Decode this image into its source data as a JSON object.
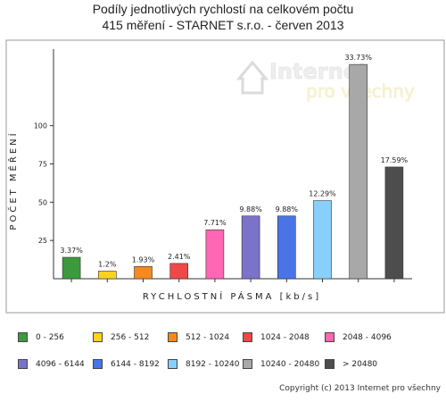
{
  "title_line1": "Podíly jednotlivých rychlostí na celkovém počtu",
  "title_line2": "415 měření - STARNET s.r.o. - červen 2013",
  "watermark": {
    "line1": "Internet",
    "line2": "pro všechny"
  },
  "copyright": "Copyright (c) 2013 Internet pro všechny",
  "chart_data": {
    "type": "bar",
    "title": "Podíly jednotlivých rychlostí na celkovém počtu",
    "subtitle": "415 měření - STARNET s.r.o. - červen 2013",
    "xlabel": "RYCHLOSTNÍ PÁSMA [kb/s]",
    "ylabel": "POČET MĚŘENÍ",
    "ylim": [
      0,
      150
    ],
    "yticks": [
      25,
      50,
      75,
      100
    ],
    "grid": false,
    "legend_position": "bottom",
    "categories": [
      "0 - 256",
      "256 - 512",
      "512 - 1024",
      "1024 - 2048",
      "2048 - 4096",
      "4096 - 6144",
      "6144 - 8192",
      "8192 - 10240",
      "10240 - 20480",
      "> 20480"
    ],
    "values": [
      14,
      5,
      8,
      10,
      32,
      41,
      41,
      51,
      140,
      73
    ],
    "data_labels": [
      "3.37%",
      "1.2%",
      "1.93%",
      "2.41%",
      "7.71%",
      "9.88%",
      "9.88%",
      "12.29%",
      "33.73%",
      "17.59%"
    ],
    "colors": [
      "#3c9a3c",
      "#ffd21e",
      "#f58a1f",
      "#ef4848",
      "#ff66b3",
      "#7b73c9",
      "#4a74e6",
      "#88d0fb",
      "#a8a8a8",
      "#4d4d4d"
    ]
  }
}
